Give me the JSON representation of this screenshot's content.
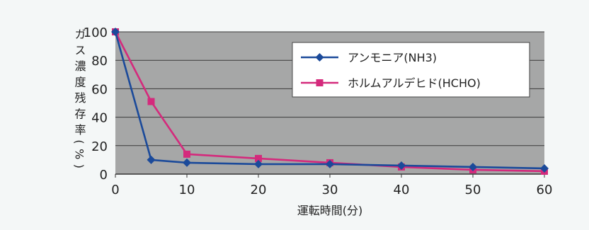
{
  "chart_data": {
    "type": "line",
    "title": "",
    "xlabel": "運転時間(分)",
    "ylabel": "ガス濃度残存率(%)",
    "xlim": [
      0,
      60
    ],
    "ylim": [
      0,
      100
    ],
    "x_ticks": [
      "0",
      "10",
      "20",
      "30",
      "40",
      "50",
      "60"
    ],
    "y_ticks": [
      "0",
      "20",
      "40",
      "60",
      "80",
      "100"
    ],
    "grid": true,
    "legend_position": "top-right",
    "background_color": "#a6a7a7",
    "series": [
      {
        "name": "アンモニア(NH3)",
        "color": "#1b4a9a",
        "marker": "diamond",
        "x": [
          0,
          5,
          10,
          20,
          30,
          40,
          50,
          60
        ],
        "y": [
          100,
          10,
          8,
          7,
          7,
          6,
          5,
          4
        ]
      },
      {
        "name": "ホルムアルデヒド(HCHO)",
        "color": "#d42a7c",
        "marker": "square",
        "x": [
          0,
          5,
          10,
          20,
          30,
          40,
          50,
          60
        ],
        "y": [
          100,
          51,
          14,
          11,
          8,
          5,
          3,
          2
        ]
      }
    ]
  }
}
